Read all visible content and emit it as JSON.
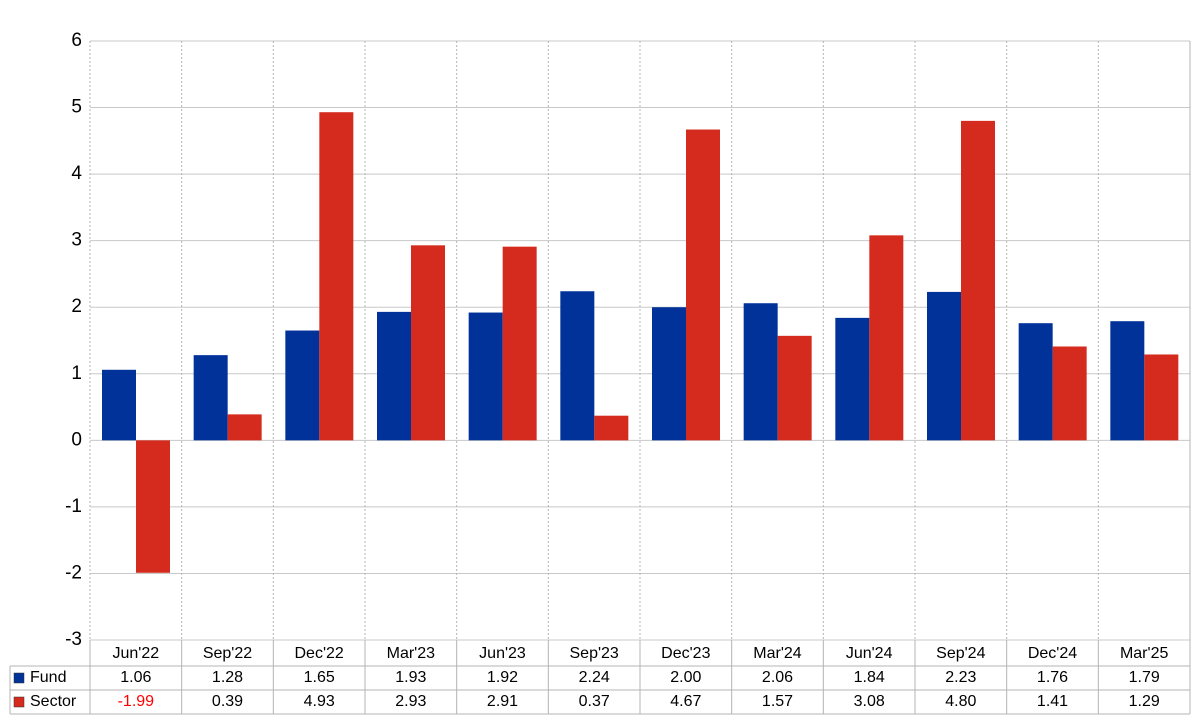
{
  "chart_data": {
    "type": "bar",
    "categories": [
      "Jun'22",
      "Sep'22",
      "Dec'22",
      "Mar'23",
      "Jun'23",
      "Sep'23",
      "Dec'23",
      "Mar'24",
      "Jun'24",
      "Sep'24",
      "Dec'24",
      "Mar'25"
    ],
    "series": [
      {
        "name": "Fund",
        "color": "#003299",
        "values": [
          1.06,
          1.28,
          1.65,
          1.93,
          1.92,
          2.24,
          2.0,
          2.06,
          1.84,
          2.23,
          1.76,
          1.79
        ],
        "value_labels": [
          "1.06",
          "1.28",
          "1.65",
          "1.93",
          "1.92",
          "2.24",
          "2.00",
          "2.06",
          "1.84",
          "2.23",
          "1.76",
          "1.79"
        ]
      },
      {
        "name": "Sector",
        "color": "#d52b1e",
        "values": [
          -1.99,
          0.39,
          4.93,
          2.93,
          2.91,
          0.37,
          4.67,
          1.57,
          3.08,
          4.8,
          1.41,
          1.29
        ],
        "value_labels": [
          "-1.99",
          "0.39",
          "4.93",
          "2.93",
          "2.91",
          "0.37",
          "4.67",
          "1.57",
          "3.08",
          "4.80",
          "1.41",
          "1.29"
        ]
      }
    ],
    "ylim": [
      -3,
      6
    ],
    "yticks": [
      -3,
      -2,
      -1,
      0,
      1,
      2,
      3,
      4,
      5,
      6
    ],
    "grid": true,
    "negative_label_color": "#ff0000"
  }
}
